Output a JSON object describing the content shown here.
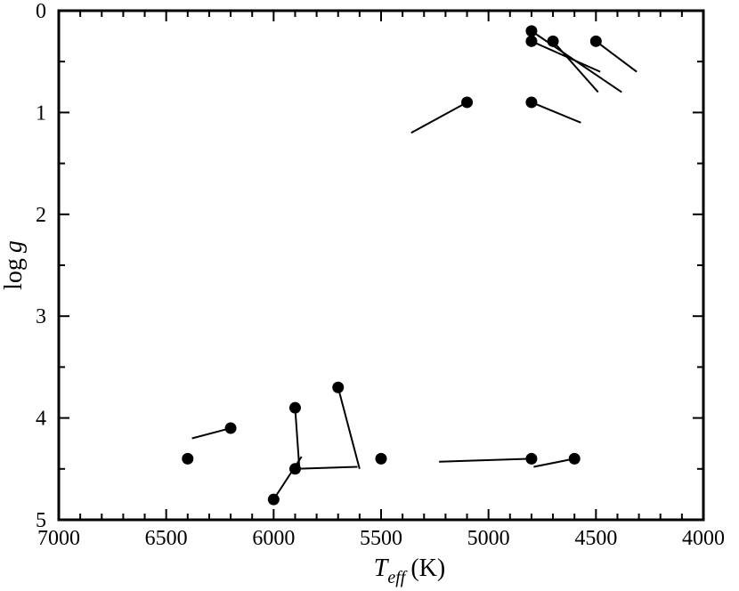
{
  "chart_data": {
    "type": "scatter",
    "title": "",
    "xlabel": {
      "symbol": "T",
      "subscript": "eff",
      "unit": "(K)"
    },
    "ylabel": {
      "prefix": "log",
      "symbol": "g"
    },
    "xlim": [
      7000,
      4000
    ],
    "ylim": [
      0,
      5
    ],
    "x_inverted": true,
    "y_inverted": true,
    "grid": false,
    "legend": "none",
    "x_ticks": [
      7000,
      6500,
      6000,
      5500,
      5000,
      4500,
      4000
    ],
    "x_tick_labels": [
      "7000",
      "6500",
      "6000",
      "5500",
      "5000",
      "4500",
      "4000"
    ],
    "y_ticks": [
      0,
      1,
      2,
      3,
      4,
      5
    ],
    "y_tick_labels": [
      "0",
      "1",
      "2",
      "3",
      "4",
      "5"
    ],
    "points": [
      {
        "teff": 4800,
        "logg": 0.2,
        "shift_to": [
          4380,
          0.8
        ]
      },
      {
        "teff": 4800,
        "logg": 0.3,
        "shift_to": [
          4480,
          0.6
        ]
      },
      {
        "teff": 4700,
        "logg": 0.3,
        "shift_to": [
          4490,
          0.8
        ]
      },
      {
        "teff": 4500,
        "logg": 0.3,
        "shift_to": [
          4310,
          0.6
        ]
      },
      {
        "teff": 5100,
        "logg": 0.9,
        "shift_to": [
          5360,
          1.2
        ]
      },
      {
        "teff": 4800,
        "logg": 0.9,
        "shift_to": [
          4570,
          1.1
        ]
      },
      {
        "teff": 5700,
        "logg": 3.7,
        "shift_to": [
          5600,
          4.5
        ]
      },
      {
        "teff": 5900,
        "logg": 3.9,
        "shift_to": [
          5880,
          4.5
        ]
      },
      {
        "teff": 6200,
        "logg": 4.1,
        "shift_to": [
          6380,
          4.2
        ]
      },
      {
        "teff": 6400,
        "logg": 4.4,
        "shift_to": null
      },
      {
        "teff": 5500,
        "logg": 4.4,
        "shift_to": null
      },
      {
        "teff": 5900,
        "logg": 4.5,
        "shift_to": [
          5610,
          4.48
        ]
      },
      {
        "teff": 6000,
        "logg": 4.8,
        "shift_to": [
          5870,
          4.38
        ]
      },
      {
        "teff": 4800,
        "logg": 4.4,
        "shift_to": [
          5230,
          4.43
        ]
      },
      {
        "teff": 4600,
        "logg": 4.4,
        "shift_to": [
          4790,
          4.48
        ]
      }
    ],
    "marker_color": "#000000",
    "line_color": "#000000"
  }
}
